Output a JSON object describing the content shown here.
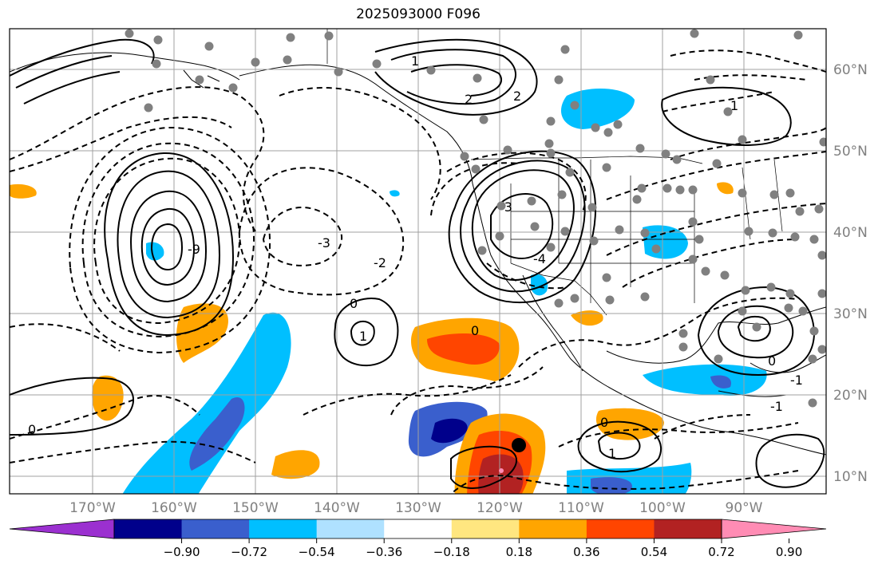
{
  "title": "2025093000 F096",
  "map": {
    "lon_labels": [
      "170°W",
      "160°W",
      "150°W",
      "140°W",
      "130°W",
      "120°W",
      "110°W",
      "100°W",
      "90°W"
    ],
    "lat_labels": [
      "60°N",
      "50°N",
      "40°N",
      "30°N",
      "20°N",
      "10°N"
    ],
    "contour_labels": {
      "pacific_low_center": "-9",
      "pacific_low_ring": "-3",
      "pacific_low_ring2": "-2",
      "pacific_high": "1",
      "pacific_high_zero": "0",
      "alaska_high": "2",
      "alaska_high2": "2",
      "canada_one": "1",
      "west_us_low": "-4",
      "west_us_low2": "-3",
      "mex_zero": "0",
      "east_us": "1",
      "east_us2": "-1",
      "trop_zero": "0",
      "trop_one": "1",
      "trop_zero2": "0",
      "gulf_zero": "0",
      "carib": "-1"
    },
    "station_marker": "storm-center"
  },
  "colorbar": {
    "ticks": [
      "−0.90",
      "−0.72",
      "−0.54",
      "−0.36",
      "−0.18",
      "0.18",
      "0.36",
      "0.54",
      "0.72",
      "0.90"
    ],
    "colors": [
      "#9b30d0",
      "#00008b",
      "#3a5fcd",
      "#00bfff",
      "#afe1ff",
      "#ffffff",
      "#ffe680",
      "#ffa500",
      "#ff4500",
      "#b22222",
      "#ff8cb4"
    ]
  }
}
